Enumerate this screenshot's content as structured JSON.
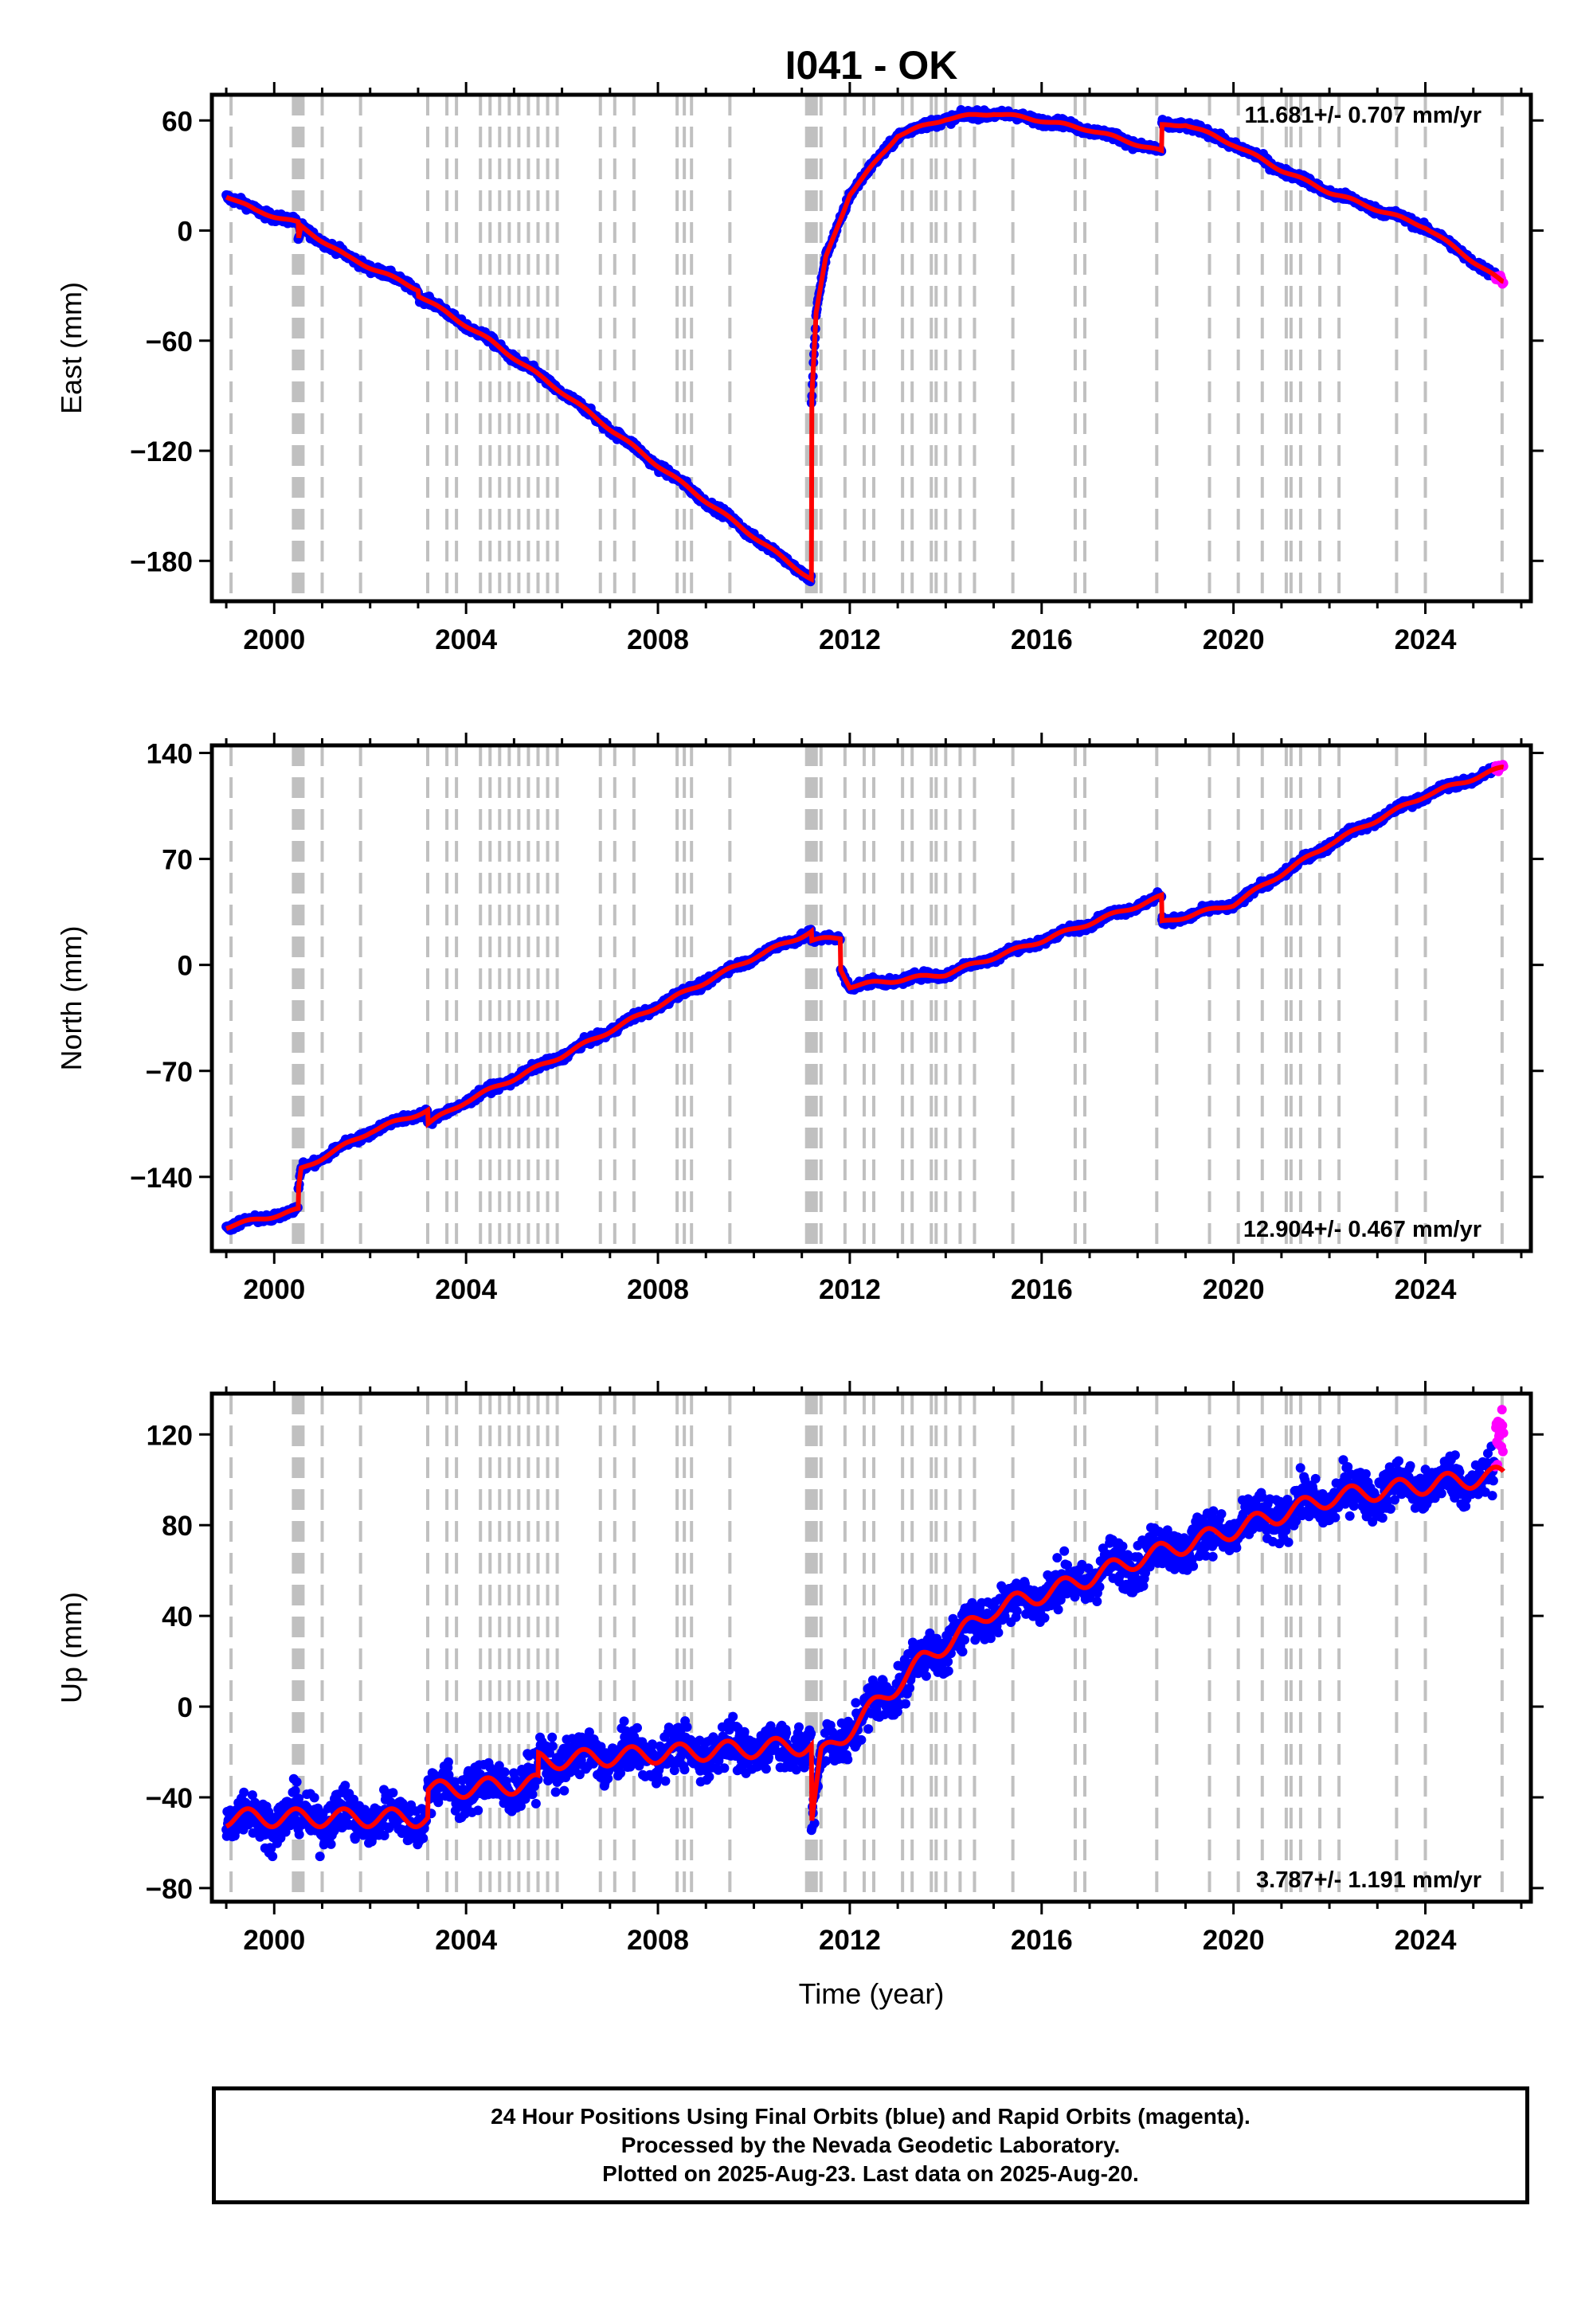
{
  "title": "I041 - OK",
  "xlabel": "Time (year)",
  "footer": {
    "line1": "24 Hour Positions Using Final Orbits (blue) and Rapid Orbits (magenta).",
    "line2": "Processed by the Nevada Geodetic Laboratory.",
    "line3": "Plotted on 2025-Aug-23. Last data on 2025-Aug-20."
  },
  "colors": {
    "final": "#0000ff",
    "rapid": "#ff00ff",
    "model": "#ff0000",
    "steps": "#c0c0c0"
  },
  "chart_data": [
    {
      "type": "scatter",
      "ylabel": "East (mm)",
      "xlim": [
        1998.7,
        2026.2
      ],
      "ylim": [
        -202,
        74
      ],
      "yticks": [
        60,
        0,
        -60,
        -120,
        -180
      ],
      "xticks": [
        2000,
        2004,
        2008,
        2012,
        2016,
        2020,
        2024
      ],
      "rate_text": "11.681+/- 0.707 mm/yr",
      "rate_position": "top-right",
      "noise": 1.6,
      "model_points": [
        [
          1999.0,
          19
        ],
        [
          1999.6,
          11
        ],
        [
          2000.5,
          4
        ],
        [
          2000.5,
          -6
        ],
        [
          2000.56,
          2
        ],
        [
          2001.5,
          -14
        ],
        [
          2003.0,
          -32
        ],
        [
          2003.0,
          -35
        ],
        [
          2004.5,
          -60
        ],
        [
          2006.0,
          -88
        ],
        [
          2008.0,
          -128
        ],
        [
          2011.2,
          -190
        ],
        [
          2011.2,
          -95
        ],
        [
          2011.3,
          -45
        ],
        [
          2011.5,
          -15
        ],
        [
          2012.0,
          20
        ],
        [
          2013.0,
          52
        ],
        [
          2014.0,
          61
        ],
        [
          2015.0,
          64
        ],
        [
          2016.0,
          60
        ],
        [
          2017.0,
          55
        ],
        [
          2018.5,
          43
        ],
        [
          2018.5,
          57
        ],
        [
          2019.0,
          58
        ],
        [
          2020.0,
          47
        ],
        [
          2021.0,
          33
        ],
        [
          2022.0,
          21
        ],
        [
          2024.0,
          2
        ],
        [
          2025.6,
          -28
        ]
      ]
    },
    {
      "type": "scatter",
      "ylabel": "North (mm)",
      "xlim": [
        1998.7,
        2026.2
      ],
      "ylim": [
        -189,
        145
      ],
      "yticks": [
        140,
        70,
        0,
        -70,
        -140
      ],
      "xticks": [
        2000,
        2004,
        2008,
        2012,
        2016,
        2020,
        2024
      ],
      "rate_text": "12.904+/- 0.467 mm/yr",
      "rate_position": "bottom-right",
      "noise": 1.8,
      "model_points": [
        [
          1999.0,
          -173
        ],
        [
          2000.5,
          -162
        ],
        [
          2000.5,
          -150
        ],
        [
          2000.56,
          -135
        ],
        [
          2002.0,
          -110
        ],
        [
          2003.2,
          -96
        ],
        [
          2003.2,
          -105
        ],
        [
          2004.0,
          -90
        ],
        [
          2006.0,
          -60
        ],
        [
          2008.0,
          -27
        ],
        [
          2010.0,
          5
        ],
        [
          2011.2,
          22
        ],
        [
          2011.2,
          16
        ],
        [
          2011.8,
          18
        ],
        [
          2011.8,
          -2
        ],
        [
          2012.0,
          -14
        ],
        [
          2014.0,
          -6
        ],
        [
          2016.0,
          16
        ],
        [
          2018.5,
          45
        ],
        [
          2018.5,
          28
        ],
        [
          2020.0,
          40
        ],
        [
          2022.0,
          80
        ],
        [
          2024.0,
          112
        ],
        [
          2025.6,
          130
        ]
      ]
    },
    {
      "type": "scatter",
      "ylabel": "Up (mm)",
      "xlim": [
        1998.7,
        2026.2
      ],
      "ylim": [
        -86,
        138
      ],
      "yticks": [
        120,
        80,
        40,
        0,
        -40,
        -80
      ],
      "xticks": [
        2000,
        2004,
        2008,
        2012,
        2016,
        2020,
        2024
      ],
      "rate_text": "3.787+/- 1.191 mm/yr",
      "rate_position": "bottom-right",
      "noise": 7,
      "model_points": [
        [
          1999.0,
          -49
        ],
        [
          2003.2,
          -49
        ],
        [
          2003.2,
          -37
        ],
        [
          2005.5,
          -34
        ],
        [
          2005.5,
          -24
        ],
        [
          2011.2,
          -17
        ],
        [
          2011.2,
          -52
        ],
        [
          2011.4,
          -22
        ],
        [
          2012.0,
          -10
        ],
        [
          2013.5,
          20
        ],
        [
          2015.0,
          43
        ],
        [
          2016.5,
          53
        ],
        [
          2018.0,
          65
        ],
        [
          2020.0,
          78
        ],
        [
          2022.0,
          92
        ],
        [
          2023.0,
          95
        ],
        [
          2025.6,
          102
        ]
      ]
    }
  ],
  "step_epochs": [
    1999.1,
    2000.4,
    2000.45,
    2000.5,
    2000.55,
    2000.6,
    2001.0,
    2001.8,
    2003.2,
    2003.6,
    2003.8,
    2004.3,
    2004.5,
    2004.7,
    2004.9,
    2005.1,
    2005.3,
    2005.5,
    2005.7,
    2005.9,
    2006.8,
    2007.1,
    2007.5,
    2008.4,
    2008.55,
    2008.7,
    2009.5,
    2011.1,
    2011.15,
    2011.2,
    2011.25,
    2011.3,
    2011.4,
    2011.9,
    2012.3,
    2012.5,
    2013.1,
    2013.3,
    2013.7,
    2013.8,
    2014.0,
    2014.3,
    2014.6,
    2015.4,
    2016.7,
    2016.9,
    2018.4,
    2019.5,
    2020.1,
    2020.6,
    2021.1,
    2021.2,
    2021.4,
    2021.8,
    2022.2,
    2023.4,
    2024.0,
    2025.6
  ]
}
